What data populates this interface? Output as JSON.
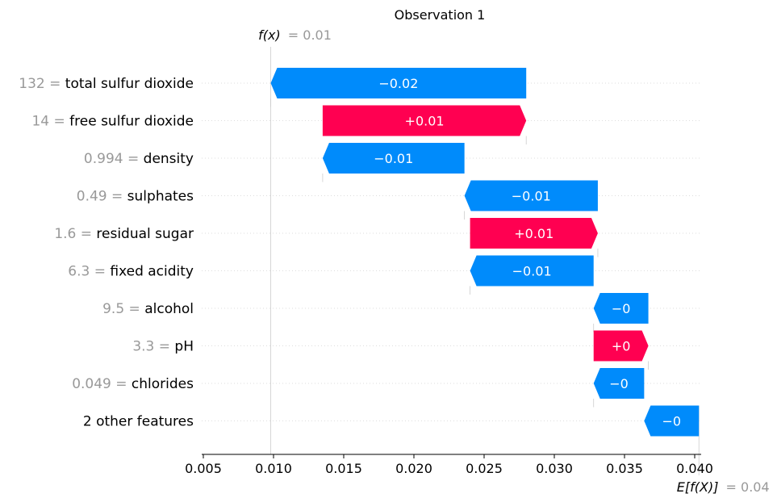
{
  "chart_data": {
    "type": "waterfall",
    "title": "Observation 1",
    "fx_label": "f(x)",
    "fx_value_text": "= 0.01",
    "fx_value": 0.0098,
    "base_label": "E[f(X)]",
    "base_value_text": "= 0.04",
    "base_value": 0.0403,
    "xlim": [
      0.005,
      0.0405
    ],
    "xticks": [
      0.005,
      0.01,
      0.015,
      0.02,
      0.025,
      0.03,
      0.035,
      0.04
    ],
    "xtick_labels": [
      "0.005",
      "0.010",
      "0.015",
      "0.020",
      "0.025",
      "0.030",
      "0.035",
      "0.040"
    ],
    "features": [
      {
        "value_text": "132 =",
        "name": "total sulfur dioxide",
        "start": 0.028,
        "end": 0.0098,
        "label": "−0.02"
      },
      {
        "value_text": "14 =",
        "name": "free sulfur dioxide",
        "start": 0.0135,
        "end": 0.028,
        "label": "+0.01"
      },
      {
        "value_text": "0.994 =",
        "name": "density",
        "start": 0.0236,
        "end": 0.0135,
        "label": "−0.01"
      },
      {
        "value_text": "0.49 =",
        "name": "sulphates",
        "start": 0.0331,
        "end": 0.0236,
        "label": "−0.01"
      },
      {
        "value_text": "1.6 =",
        "name": "residual sugar",
        "start": 0.024,
        "end": 0.0331,
        "label": "+0.01"
      },
      {
        "value_text": "6.3 =",
        "name": "fixed acidity",
        "start": 0.0328,
        "end": 0.024,
        "label": "−0.01"
      },
      {
        "value_text": "9.5 =",
        "name": "alcohol",
        "start": 0.0367,
        "end": 0.0328,
        "label": "−0"
      },
      {
        "value_text": "3.3 =",
        "name": "pH",
        "start": 0.0328,
        "end": 0.0367,
        "label": "+0"
      },
      {
        "value_text": "0.049 =",
        "name": "chlorides",
        "start": 0.0364,
        "end": 0.0328,
        "label": "−0"
      },
      {
        "value_text": "",
        "name": "2 other features",
        "start": 0.0403,
        "end": 0.0364,
        "label": "−0"
      }
    ],
    "colors": {
      "positive": "#ff0051",
      "negative": "#008bfb",
      "muted_text": "#999999",
      "text": "#000000",
      "grid": "#cccccc"
    }
  }
}
